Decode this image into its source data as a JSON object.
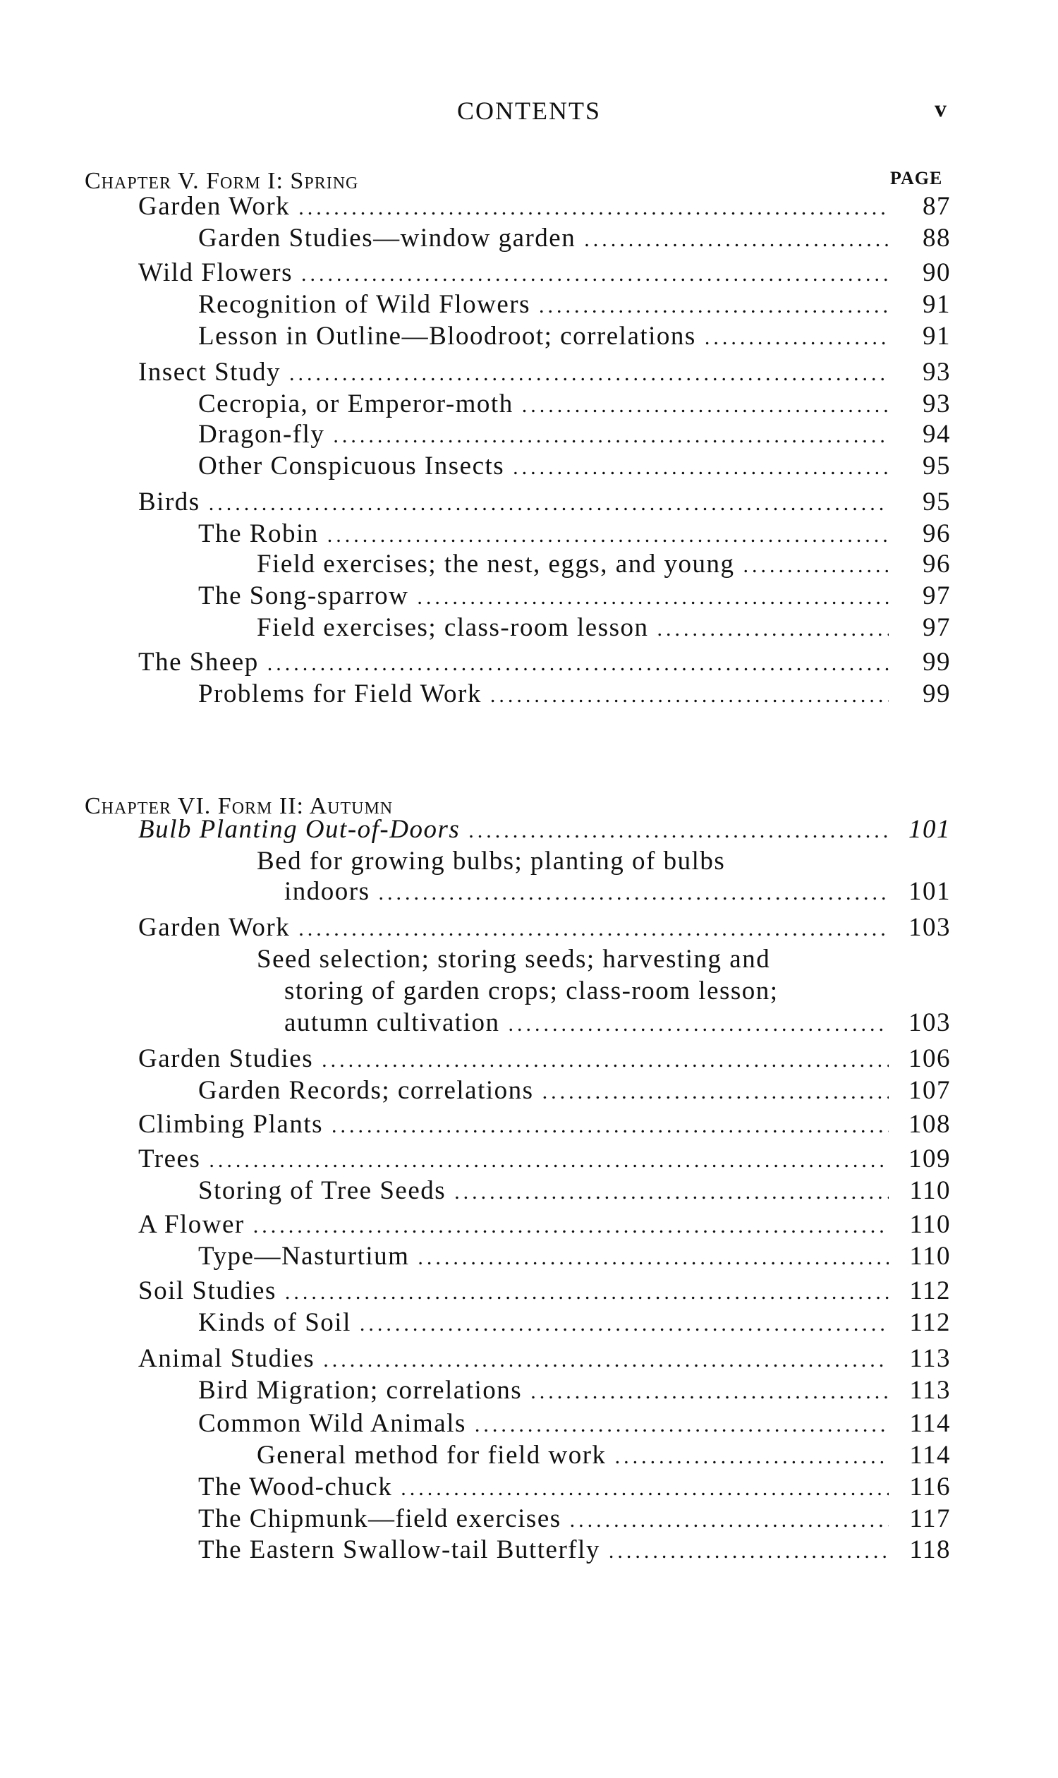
{
  "running_head": "CONTENTS",
  "folio": "v",
  "page_label": "PAGE",
  "chapters": [
    {
      "heading": "Chapter V.  Form I: Spring",
      "entries": [
        {
          "level": 1,
          "text": "Garden Work",
          "page": "87"
        },
        {
          "level": 2,
          "text": "Garden Studies—window garden",
          "page": "88"
        },
        {
          "level": 1,
          "text": "Wild Flowers",
          "page": "90"
        },
        {
          "level": 2,
          "text": "Recognition of Wild Flowers",
          "page": "91"
        },
        {
          "level": 2,
          "text": "Lesson in Outline—Bloodroot; correlations",
          "page": "91"
        },
        {
          "level": 1,
          "text": "Insect Study",
          "page": "93"
        },
        {
          "level": 2,
          "text": "Cecropia, or Emperor-moth",
          "page": "93"
        },
        {
          "level": 2,
          "text": "Dragon-fly",
          "page": "94"
        },
        {
          "level": 2,
          "text": "Other Conspicuous Insects",
          "page": "95"
        },
        {
          "level": 1,
          "text": "Birds",
          "page": "95"
        },
        {
          "level": 2,
          "text": "The Robin",
          "page": "96"
        },
        {
          "level": 3,
          "text": "Field exercises; the nest, eggs, and young",
          "page": "96"
        },
        {
          "level": 2,
          "text": "The Song-sparrow",
          "page": "97"
        },
        {
          "level": 3,
          "text": "Field exercises; class-room lesson",
          "page": "97"
        },
        {
          "level": 1,
          "text": "The Sheep",
          "page": "99"
        },
        {
          "level": 2,
          "text": "Problems for Field Work",
          "page": "99"
        }
      ]
    },
    {
      "heading": "Chapter VI.  Form II: Autumn",
      "entries": [
        {
          "level": 1,
          "text": "Bulb Planting Out-of-Doors",
          "page": "101",
          "italic": true
        },
        {
          "level": 3,
          "text": "Bed for growing bulbs; planting of bulbs",
          "page": ""
        },
        {
          "level": 4,
          "text": "indoors",
          "page": "101"
        },
        {
          "level": 1,
          "text": "Garden Work",
          "page": "103"
        },
        {
          "level": 3,
          "text": "Seed selection; storing seeds; harvesting and",
          "page": ""
        },
        {
          "level": 4,
          "text": "storing of garden crops; class-room lesson;",
          "page": ""
        },
        {
          "level": 4,
          "text": "autumn cultivation",
          "page": "103"
        },
        {
          "level": 1,
          "text": "Garden Studies",
          "page": "106"
        },
        {
          "level": 2,
          "text": "Garden Records; correlations",
          "page": "107"
        },
        {
          "level": 1,
          "text": "Climbing Plants",
          "page": "108"
        },
        {
          "level": 1,
          "text": "Trees",
          "page": "109"
        },
        {
          "level": 2,
          "text": "Storing of Tree Seeds",
          "page": "110"
        },
        {
          "level": 1,
          "text": "A Flower",
          "page": "110"
        },
        {
          "level": 2,
          "text": "Type—Nasturtium",
          "page": "110"
        },
        {
          "level": 1,
          "text": "Soil Studies",
          "page": "112"
        },
        {
          "level": 2,
          "text": "Kinds of Soil",
          "page": "112"
        },
        {
          "level": 1,
          "text": "Animal Studies",
          "page": "113"
        },
        {
          "level": 2,
          "text": "Bird Migration; correlations",
          "page": "113"
        },
        {
          "level": 2,
          "text": "Common Wild Animals",
          "page": "114"
        },
        {
          "level": 3,
          "text": "General method for field work",
          "page": "114"
        },
        {
          "level": 2,
          "text": "The Wood-chuck",
          "page": "116"
        },
        {
          "level": 2,
          "text": "The Chipmunk—field exercises",
          "page": "117"
        },
        {
          "level": 2,
          "text": "The Eastern Swallow-tail Butterfly",
          "page": "118"
        }
      ]
    }
  ]
}
